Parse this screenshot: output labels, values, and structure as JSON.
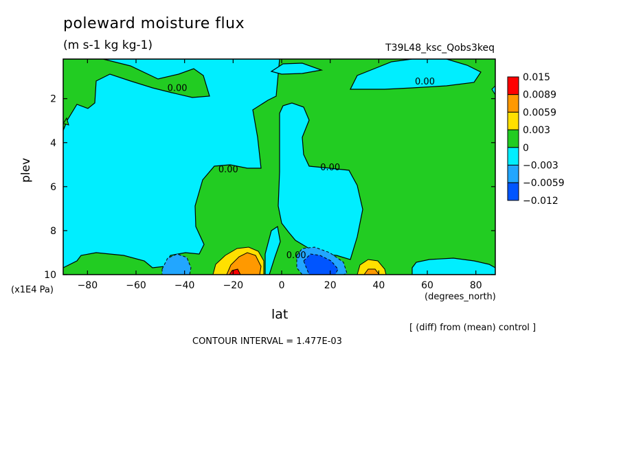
{
  "chart_data": {
    "type": "heatmap",
    "title": "poleward moisture flux",
    "subtitle": "(m s-1 kg kg-1)",
    "run_label": "T39L48_ksc_Qobs3keq",
    "xlabel": "lat",
    "xunits": "(degrees_north)",
    "ylabel": "plev",
    "yunits": "(x1E4 Pa)",
    "xlim": [
      -90,
      88
    ],
    "ylim": [
      0.2,
      10
    ],
    "x_ticks": [
      -80,
      -60,
      -40,
      -20,
      0,
      20,
      40,
      60,
      80
    ],
    "y_ticks": [
      2,
      4,
      6,
      8,
      10
    ],
    "y_inverted": true,
    "contour_labels": [
      {
        "text": "0.00",
        "x": -43,
        "y": 1.5
      },
      {
        "text": "0.00",
        "x": -22,
        "y": 5.2
      },
      {
        "text": "0.00",
        "x": 20,
        "y": 5.1
      },
      {
        "text": "0.00",
        "x": 59,
        "y": 1.2
      },
      {
        "text": "0.00",
        "x": 6,
        "y": 9.1
      }
    ],
    "colorbar": {
      "labels": [
        "0.015",
        "0.0089",
        "0.0059",
        "0.003",
        "0",
        "-0.003",
        "-0.0059",
        "-0.012"
      ],
      "colors": [
        "#ff0000",
        "#ff9900",
        "#ffe000",
        "#22cc22",
        "#00eeff",
        "#22a6ff",
        "#0055ff"
      ]
    },
    "contour_interval_text": "CONTOUR INTERVAL = 1.477E-03",
    "diff_note": "[ (diff) from (mean) control ]"
  }
}
